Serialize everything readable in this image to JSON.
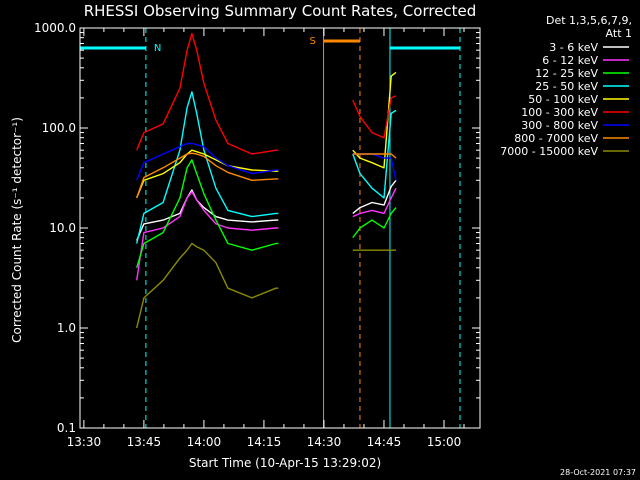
{
  "chart_data": {
    "type": "line",
    "title": "RHESSI Observing Summary Count Rates, Corrected",
    "xlabel": "Start Time (10-Apr-15 13:29:02)",
    "ylabel": "Corrected Count Rate (s⁻¹ detector⁻¹)",
    "y_scale": "log",
    "ylim": [
      0.1,
      1000
    ],
    "xlim": [
      "13:29:02",
      "15:09:00"
    ],
    "x_ticks": [
      "13:30",
      "13:45",
      "14:00",
      "14:15",
      "14:30",
      "14:45",
      "15:00"
    ],
    "y_ticks": [
      "0.1",
      "1.0",
      "10.0",
      "100.0",
      "1000.0"
    ],
    "grid": false,
    "legend_title": [
      "Det 1,3,5,6,7,9,",
      "Att 1"
    ],
    "legend_placement": "right",
    "series": [
      {
        "name": "3 - 6 keV",
        "color": "#ffffff",
        "points": [
          [
            13.72,
            7.5
          ],
          [
            13.75,
            11
          ],
          [
            13.83,
            12
          ],
          [
            13.9,
            14
          ],
          [
            13.93,
            20
          ],
          [
            13.95,
            24
          ],
          [
            13.97,
            19
          ],
          [
            14.0,
            16
          ],
          [
            14.05,
            13
          ],
          [
            14.1,
            12
          ],
          [
            14.2,
            11.5
          ],
          [
            14.3,
            12
          ],
          [
            14.31,
            12
          ],
          [
            14.62,
            14
          ],
          [
            14.65,
            16
          ],
          [
            14.7,
            18
          ],
          [
            14.75,
            17
          ],
          [
            14.78,
            26
          ],
          [
            14.8,
            30
          ]
        ]
      },
      {
        "name": "6 - 12 keV",
        "color": "#ff33ff",
        "points": [
          [
            13.72,
            3
          ],
          [
            13.75,
            9
          ],
          [
            13.83,
            10
          ],
          [
            13.9,
            13
          ],
          [
            13.93,
            20
          ],
          [
            13.95,
            23
          ],
          [
            13.97,
            19
          ],
          [
            14.0,
            15
          ],
          [
            14.05,
            11
          ],
          [
            14.1,
            10
          ],
          [
            14.2,
            9.5
          ],
          [
            14.3,
            10
          ],
          [
            14.31,
            10
          ],
          [
            14.62,
            13
          ],
          [
            14.65,
            14
          ],
          [
            14.7,
            15
          ],
          [
            14.75,
            14
          ],
          [
            14.78,
            20
          ],
          [
            14.8,
            25
          ]
        ]
      },
      {
        "name": "12 - 25 keV",
        "color": "#00ff00",
        "points": [
          [
            13.72,
            4
          ],
          [
            13.75,
            7
          ],
          [
            13.83,
            9
          ],
          [
            13.9,
            20
          ],
          [
            13.93,
            40
          ],
          [
            13.95,
            48
          ],
          [
            13.97,
            35
          ],
          [
            14.0,
            22
          ],
          [
            14.05,
            12
          ],
          [
            14.1,
            7
          ],
          [
            14.2,
            6
          ],
          [
            14.3,
            7
          ],
          [
            14.31,
            7
          ],
          [
            14.62,
            8
          ],
          [
            14.65,
            10
          ],
          [
            14.7,
            12
          ],
          [
            14.75,
            10
          ],
          [
            14.78,
            14
          ],
          [
            14.8,
            16
          ]
        ]
      },
      {
        "name": "25 - 50 keV",
        "color": "#00ffff",
        "points": [
          [
            13.72,
            7
          ],
          [
            13.75,
            14
          ],
          [
            13.83,
            18
          ],
          [
            13.9,
            60
          ],
          [
            13.93,
            160
          ],
          [
            13.95,
            230
          ],
          [
            13.97,
            140
          ],
          [
            14.0,
            60
          ],
          [
            14.05,
            25
          ],
          [
            14.1,
            15
          ],
          [
            14.2,
            13
          ],
          [
            14.3,
            14
          ],
          [
            14.31,
            14
          ],
          [
            14.62,
            55
          ],
          [
            14.65,
            35
          ],
          [
            14.7,
            25
          ],
          [
            14.75,
            20
          ],
          [
            14.78,
            140
          ],
          [
            14.8,
            150
          ]
        ]
      },
      {
        "name": "50 - 100 keV",
        "color": "#ffff00",
        "points": [
          [
            13.72,
            20
          ],
          [
            13.75,
            30
          ],
          [
            13.83,
            35
          ],
          [
            13.9,
            45
          ],
          [
            13.93,
            55
          ],
          [
            13.95,
            60
          ],
          [
            13.97,
            58
          ],
          [
            14.0,
            55
          ],
          [
            14.05,
            48
          ],
          [
            14.1,
            42
          ],
          [
            14.2,
            38
          ],
          [
            14.3,
            37
          ],
          [
            14.31,
            37
          ],
          [
            14.62,
            60
          ],
          [
            14.65,
            50
          ],
          [
            14.7,
            45
          ],
          [
            14.75,
            40
          ],
          [
            14.78,
            330
          ],
          [
            14.8,
            360
          ]
        ]
      },
      {
        "name": "100 - 300 keV",
        "color": "#ff0000",
        "points": [
          [
            13.72,
            60
          ],
          [
            13.75,
            90
          ],
          [
            13.83,
            110
          ],
          [
            13.9,
            250
          ],
          [
            13.93,
            600
          ],
          [
            13.95,
            880
          ],
          [
            13.97,
            600
          ],
          [
            14.0,
            280
          ],
          [
            14.05,
            120
          ],
          [
            14.1,
            70
          ],
          [
            14.2,
            55
          ],
          [
            14.3,
            60
          ],
          [
            14.31,
            60
          ],
          [
            14.62,
            190
          ],
          [
            14.65,
            130
          ],
          [
            14.7,
            90
          ],
          [
            14.75,
            80
          ],
          [
            14.78,
            200
          ],
          [
            14.8,
            210
          ]
        ]
      },
      {
        "name": "300 - 800 keV",
        "color": "#0000ff",
        "points": [
          [
            13.72,
            30
          ],
          [
            13.75,
            45
          ],
          [
            13.83,
            55
          ],
          [
            13.9,
            65
          ],
          [
            13.93,
            70
          ],
          [
            13.95,
            70
          ],
          [
            13.97,
            68
          ],
          [
            14.0,
            65
          ],
          [
            14.05,
            50
          ],
          [
            14.1,
            42
          ],
          [
            14.2,
            35
          ],
          [
            14.3,
            38
          ],
          [
            14.31,
            38
          ],
          [
            14.62,
            55
          ],
          [
            14.65,
            55
          ],
          [
            14.7,
            55
          ],
          [
            14.75,
            50
          ],
          [
            14.78,
            50
          ],
          [
            14.8,
            30
          ]
        ]
      },
      {
        "name": "800 - 7000 keV",
        "color": "#ff8800",
        "points": [
          [
            13.72,
            20
          ],
          [
            13.75,
            32
          ],
          [
            13.83,
            40
          ],
          [
            13.9,
            50
          ],
          [
            13.93,
            55
          ],
          [
            13.95,
            56
          ],
          [
            13.97,
            55
          ],
          [
            14.0,
            52
          ],
          [
            14.05,
            42
          ],
          [
            14.1,
            36
          ],
          [
            14.2,
            30
          ],
          [
            14.3,
            31
          ],
          [
            14.31,
            31
          ],
          [
            14.62,
            55
          ],
          [
            14.65,
            55
          ],
          [
            14.7,
            55
          ],
          [
            14.75,
            55
          ],
          [
            14.78,
            55
          ],
          [
            14.8,
            50
          ]
        ]
      },
      {
        "name": "7000 - 15000 keV",
        "color": "#8b8b00",
        "points": [
          [
            13.72,
            1
          ],
          [
            13.75,
            2
          ],
          [
            13.83,
            3
          ],
          [
            13.9,
            5
          ],
          [
            13.93,
            6
          ],
          [
            13.95,
            7
          ],
          [
            13.97,
            6.5
          ],
          [
            14.0,
            6
          ],
          [
            14.05,
            4.5
          ],
          [
            14.1,
            2.5
          ],
          [
            14.2,
            2
          ],
          [
            14.3,
            2.5
          ],
          [
            14.31,
            2.5
          ],
          [
            14.62,
            6
          ],
          [
            14.65,
            6
          ],
          [
            14.7,
            6
          ],
          [
            14.75,
            6
          ],
          [
            14.78,
            6
          ],
          [
            14.8,
            6
          ]
        ]
      }
    ],
    "flag_labels": [
      {
        "text": "N",
        "color": "#00ffff"
      },
      {
        "text": "S",
        "color": "#ff8800"
      }
    ],
    "timestamp": "28-Oct-2021 07:37"
  }
}
